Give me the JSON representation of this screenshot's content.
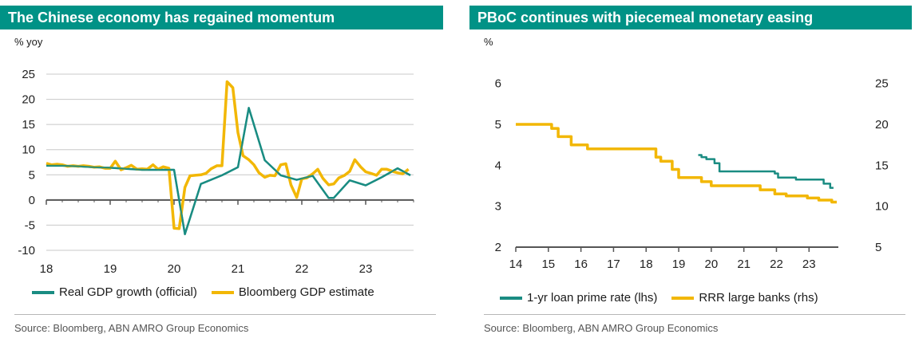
{
  "left": {
    "title": "The Chinese economy has regained momentum",
    "unit": "% yoy",
    "source": "Source: Bloomberg, ABN AMRO Group Economics"
  },
  "right": {
    "title": "PBoC continues with piecemeal monetary easing",
    "unit": "%",
    "source": "Source: Bloomberg, ABN AMRO Group Economics"
  },
  "colors": {
    "teal": "#1a8c82",
    "gold": "#f2b705",
    "header": "#009286",
    "grid": "#c8c8c8",
    "axis": "#555555"
  },
  "chart_data": [
    {
      "type": "line",
      "title": "The Chinese economy has regained momentum",
      "ylabel": "% yoy",
      "ylim": [
        -10,
        25
      ],
      "yticks": [
        25,
        20,
        15,
        10,
        5,
        0,
        -5,
        -10
      ],
      "xlim": [
        2018.0,
        2023.75
      ],
      "xticks": [
        {
          "v": 2018,
          "label": "18"
        },
        {
          "v": 2019,
          "label": "19"
        },
        {
          "v": 2020,
          "label": "20"
        },
        {
          "v": 2021,
          "label": "21"
        },
        {
          "v": 2022,
          "label": "22"
        },
        {
          "v": 2023,
          "label": "23"
        }
      ],
      "grid": true,
      "legend_position": "bottom",
      "series": [
        {
          "name": "Real GDP growth (official)",
          "color": "#1a8c82",
          "x": [
            2018.0,
            2018.25,
            2018.5,
            2018.75,
            2019.0,
            2019.25,
            2019.5,
            2019.75,
            2020.0,
            2020.17,
            2020.42,
            2020.75,
            2021.0,
            2021.17,
            2021.42,
            2021.67,
            2021.92,
            2022.17,
            2022.42,
            2022.5,
            2022.75,
            2023.0,
            2023.25,
            2023.5,
            2023.7
          ],
          "y": [
            6.8,
            6.8,
            6.7,
            6.5,
            6.4,
            6.2,
            6.0,
            6.0,
            6.0,
            -6.8,
            3.2,
            4.9,
            6.5,
            18.3,
            7.9,
            4.9,
            4.0,
            4.8,
            0.4,
            0.4,
            3.9,
            2.9,
            4.5,
            6.3,
            4.9
          ]
        },
        {
          "name": "Bloomberg GDP estimate",
          "color": "#f2b705",
          "x": [
            2018.0,
            2018.08,
            2018.17,
            2018.25,
            2018.33,
            2018.42,
            2018.5,
            2018.58,
            2018.67,
            2018.75,
            2018.83,
            2018.92,
            2019.0,
            2019.08,
            2019.17,
            2019.25,
            2019.33,
            2019.42,
            2019.5,
            2019.58,
            2019.67,
            2019.75,
            2019.83,
            2019.92,
            2020.0,
            2020.08,
            2020.17,
            2020.25,
            2020.33,
            2020.42,
            2020.5,
            2020.58,
            2020.67,
            2020.75,
            2020.83,
            2020.92,
            2021.0,
            2021.08,
            2021.17,
            2021.25,
            2021.33,
            2021.42,
            2021.5,
            2021.58,
            2021.67,
            2021.75,
            2021.83,
            2021.92,
            2022.0,
            2022.08,
            2022.17,
            2022.25,
            2022.33,
            2022.42,
            2022.5,
            2022.58,
            2022.67,
            2022.75,
            2022.83,
            2022.92,
            2023.0,
            2023.08,
            2023.17,
            2023.25,
            2023.33,
            2023.42,
            2023.5,
            2023.58,
            2023.67
          ],
          "y": [
            7.3,
            7.0,
            7.1,
            7.0,
            6.7,
            6.8,
            6.7,
            6.8,
            6.7,
            6.5,
            6.6,
            6.3,
            6.3,
            7.7,
            6.0,
            6.4,
            6.9,
            6.1,
            6.2,
            6.1,
            7.0,
            6.1,
            6.6,
            6.3,
            -5.6,
            -5.7,
            2.5,
            4.8,
            4.9,
            5.0,
            5.3,
            6.2,
            6.8,
            6.8,
            23.5,
            22.3,
            13.4,
            8.8,
            8.0,
            7.0,
            5.4,
            4.5,
            4.9,
            4.8,
            7.0,
            7.2,
            3.0,
            0.5,
            4.2,
            4.4,
            5.2,
            6.1,
            4.3,
            3.0,
            3.2,
            4.4,
            4.9,
            5.7,
            8.0,
            6.6,
            5.6,
            5.3,
            4.9,
            6.1,
            6.1,
            5.7,
            5.4,
            5.2,
            6.1
          ]
        }
      ]
    },
    {
      "type": "line",
      "title": "PBoC continues with piecemeal monetary easing",
      "ylabel": "%",
      "ylim": [
        2,
        6.5
      ],
      "yticks": [
        6,
        5,
        4,
        3,
        2
      ],
      "y2lim": [
        5,
        27.5
      ],
      "y2ticks": [
        25,
        20,
        15,
        10,
        5
      ],
      "xlim": [
        2014.0,
        2023.9
      ],
      "xticks": [
        {
          "v": 2014,
          "label": "14"
        },
        {
          "v": 2015,
          "label": "15"
        },
        {
          "v": 2016,
          "label": "16"
        },
        {
          "v": 2017,
          "label": "17"
        },
        {
          "v": 2018,
          "label": "18"
        },
        {
          "v": 2019,
          "label": "19"
        },
        {
          "v": 2020,
          "label": "20"
        },
        {
          "v": 2021,
          "label": "21"
        },
        {
          "v": 2022,
          "label": "22"
        },
        {
          "v": 2023,
          "label": "23"
        }
      ],
      "grid": false,
      "legend_position": "bottom",
      "series": [
        {
          "name": "1-yr loan prime rate (lhs)",
          "axis": "left",
          "color": "#1a8c82",
          "step": true,
          "x": [
            2019.6,
            2019.7,
            2019.85,
            2020.1,
            2020.25,
            2021.0,
            2021.95,
            2022.05,
            2022.6,
            2023.45,
            2023.65,
            2023.75
          ],
          "y": [
            4.25,
            4.2,
            4.15,
            4.05,
            3.85,
            3.85,
            3.8,
            3.7,
            3.65,
            3.55,
            3.45,
            3.45
          ]
        },
        {
          "name": "RRR large banks (rhs)",
          "axis": "right",
          "color": "#f2b705",
          "step": true,
          "x": [
            2014.0,
            2015.1,
            2015.3,
            2015.7,
            2015.9,
            2016.2,
            2018.3,
            2018.45,
            2018.8,
            2019.0,
            2019.7,
            2020.0,
            2021.5,
            2021.95,
            2022.3,
            2022.95,
            2023.3,
            2023.7,
            2023.85
          ],
          "y": [
            20,
            19.5,
            18.5,
            17.5,
            17.5,
            17.0,
            16.0,
            15.5,
            14.5,
            13.5,
            13.0,
            12.5,
            12.0,
            11.5,
            11.25,
            11.0,
            10.75,
            10.5,
            10.5
          ]
        }
      ]
    }
  ]
}
